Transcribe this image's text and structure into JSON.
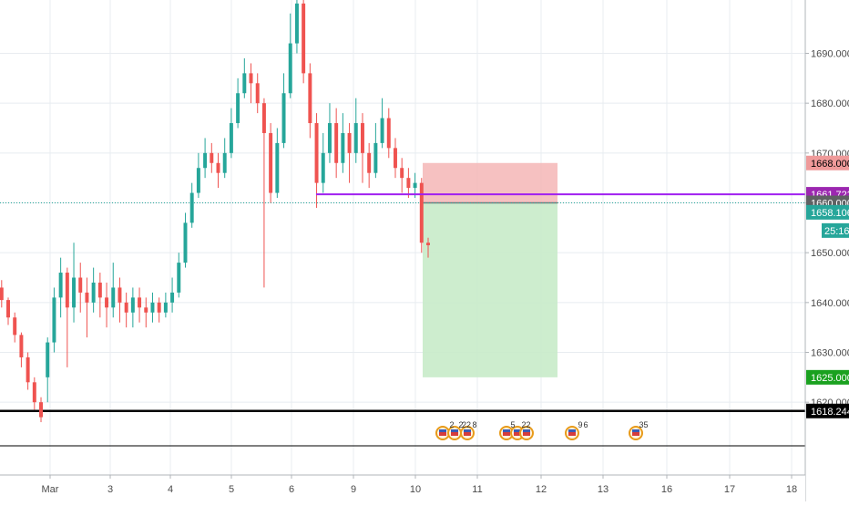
{
  "chart_data": {
    "type": "candlestick",
    "x_ticks": [
      "Mar",
      "3",
      "4",
      "5",
      "6",
      "9",
      "10",
      "11",
      "12",
      "13",
      "16",
      "17",
      "18"
    ],
    "y_ticks": [
      "1620.000",
      "1630.000",
      "1640.000",
      "1650.000",
      "1660.000",
      "1670.000",
      "1680.000",
      "1690.000"
    ],
    "ylim": [
      1608,
      1702
    ],
    "grid": true,
    "candles": [
      [
        1643.0,
        1640.5,
        1644.5,
        1639.0
      ],
      [
        1640.5,
        1637.0,
        1641.0,
        1635.5
      ],
      [
        1637.0,
        1633.5,
        1638.0,
        1632.0
      ],
      [
        1633.5,
        1629.0,
        1634.0,
        1627.0
      ],
      [
        1629.0,
        1624.0,
        1630.0,
        1622.5
      ],
      [
        1624.0,
        1620.0,
        1625.0,
        1618.5
      ],
      [
        1620.0,
        1617.0,
        1621.0,
        1616.0
      ],
      [
        1625.0,
        1632.0,
        1633.0,
        1620.0
      ],
      [
        1632.0,
        1641.0,
        1643.0,
        1630.0
      ],
      [
        1641.0,
        1646.0,
        1649.0,
        1637.0
      ],
      [
        1646.0,
        1639.0,
        1647.0,
        1627.0
      ],
      [
        1639.0,
        1645.0,
        1652.0,
        1636.0
      ],
      [
        1645.0,
        1642.0,
        1648.0,
        1638.0
      ],
      [
        1642.0,
        1640.0,
        1645.0,
        1633.0
      ],
      [
        1640.0,
        1644.0,
        1647.0,
        1638.0
      ],
      [
        1644.0,
        1641.0,
        1646.0,
        1637.0
      ],
      [
        1641.0,
        1639.0,
        1644.0,
        1635.0
      ],
      [
        1639.0,
        1643.0,
        1648.0,
        1637.0
      ],
      [
        1643.0,
        1640.0,
        1645.0,
        1636.0
      ],
      [
        1640.0,
        1638.0,
        1642.0,
        1635.0
      ],
      [
        1638.0,
        1641.0,
        1643.0,
        1635.0
      ],
      [
        1641.0,
        1639.0,
        1643.0,
        1636.0
      ],
      [
        1639.0,
        1638.0,
        1641.0,
        1635.0
      ],
      [
        1638.0,
        1640.0,
        1642.0,
        1636.0
      ],
      [
        1640.0,
        1638.0,
        1641.0,
        1636.0
      ],
      [
        1638.0,
        1640.0,
        1642.0,
        1637.0
      ],
      [
        1640.0,
        1642.0,
        1645.0,
        1638.0
      ],
      [
        1642.0,
        1648.0,
        1650.0,
        1641.0
      ],
      [
        1648.0,
        1656.0,
        1658.0,
        1647.0
      ],
      [
        1656.0,
        1662.0,
        1664.0,
        1655.0
      ],
      [
        1662.0,
        1667.0,
        1670.0,
        1661.0
      ],
      [
        1667.0,
        1670.0,
        1673.0,
        1665.0
      ],
      [
        1670.0,
        1668.0,
        1672.0,
        1666.0
      ],
      [
        1668.0,
        1666.0,
        1670.0,
        1663.0
      ],
      [
        1666.0,
        1670.0,
        1673.0,
        1665.0
      ],
      [
        1670.0,
        1676.0,
        1679.0,
        1669.0
      ],
      [
        1676.0,
        1682.0,
        1685.0,
        1675.0
      ],
      [
        1682.0,
        1686.0,
        1689.0,
        1681.0
      ],
      [
        1686.0,
        1684.0,
        1688.0,
        1680.0
      ],
      [
        1684.0,
        1680.0,
        1686.0,
        1678.0
      ],
      [
        1680.0,
        1674.0,
        1681.0,
        1643.0
      ],
      [
        1674.0,
        1662.0,
        1676.0,
        1660.0
      ],
      [
        1662.0,
        1672.0,
        1675.0,
        1661.0
      ],
      [
        1672.0,
        1682.0,
        1686.0,
        1671.0
      ],
      [
        1682.0,
        1692.0,
        1698.0,
        1681.0
      ],
      [
        1692.0,
        1700.0,
        1703.0,
        1690.0
      ],
      [
        1700.0,
        1686.0,
        1702.0,
        1684.0
      ],
      [
        1686.0,
        1676.0,
        1688.0,
        1673.0
      ],
      [
        1676.0,
        1664.0,
        1678.0,
        1659.0
      ],
      [
        1664.0,
        1670.0,
        1674.0,
        1662.0
      ],
      [
        1670.0,
        1676.0,
        1680.0,
        1668.0
      ],
      [
        1676.0,
        1668.0,
        1679.0,
        1665.0
      ],
      [
        1668.0,
        1674.0,
        1678.0,
        1666.0
      ],
      [
        1674.0,
        1670.0,
        1676.0,
        1664.0
      ],
      [
        1670.0,
        1676.0,
        1681.0,
        1668.0
      ],
      [
        1676.0,
        1670.0,
        1678.0,
        1664.0
      ],
      [
        1670.0,
        1666.0,
        1672.0,
        1663.0
      ],
      [
        1666.0,
        1672.0,
        1676.0,
        1665.0
      ],
      [
        1672.0,
        1677.0,
        1681.0,
        1671.0
      ],
      [
        1677.0,
        1671.0,
        1679.0,
        1669.0
      ],
      [
        1671.0,
        1667.0,
        1673.0,
        1665.0
      ],
      [
        1667.0,
        1665.0,
        1669.0,
        1662.0
      ],
      [
        1665.0,
        1663.0,
        1667.0,
        1661.0
      ],
      [
        1663.0,
        1664.0,
        1666.0,
        1661.0
      ],
      [
        1664.0,
        1652.0,
        1665.0,
        1650.0
      ],
      [
        1652.0,
        1651.5,
        1653.0,
        1649.0
      ]
    ],
    "candle_x_start": 1.8,
    "candle_x_end": 470.0,
    "horizontal_levels": [
      {
        "value": 1661.722,
        "label": "1661.722",
        "color": "#a020f0"
      },
      {
        "value": 1618.244,
        "label": "1618.244",
        "color": "#000000"
      }
    ],
    "current_price_line": {
      "value": 1658.106,
      "color": "#26a69a"
    },
    "dotted_level": 1660.0,
    "position_tool": {
      "entry": 1660.0,
      "stop": 1668.0,
      "target": 1625.0,
      "x_from_label": "10",
      "x_to_label": "12"
    },
    "price_labels": [
      {
        "value": 1668.0,
        "text": "1668.000",
        "bg": "#ef9a9a",
        "fg": "#000000"
      },
      {
        "value": 1661.722,
        "text": "1661.722",
        "bg": "#9c27b0",
        "fg": "#ffffff"
      },
      {
        "value": 1660.0,
        "text": "1660.000",
        "bg": "#5f6163",
        "fg": "#ffffff"
      },
      {
        "value": 1658.106,
        "text": "1658.106",
        "bg": "#26a69a",
        "fg": "#ffffff"
      },
      {
        "value": 1625.0,
        "text": "1625.000",
        "bg": "#1aa11f",
        "fg": "#ffffff"
      },
      {
        "value": 1618.244,
        "text": "1618.244",
        "bg": "#000000",
        "fg": "#ffffff"
      }
    ],
    "countdown": "25:16",
    "event_numbers": [
      "2",
      "2",
      "22",
      "8",
      "5",
      "2",
      "2",
      "9",
      "6",
      "3",
      "5"
    ],
    "colors": {
      "up": "#26a69a",
      "down": "#ef5350",
      "grid": "#e8ecf0",
      "axis_text": "#4a4a4a"
    }
  }
}
